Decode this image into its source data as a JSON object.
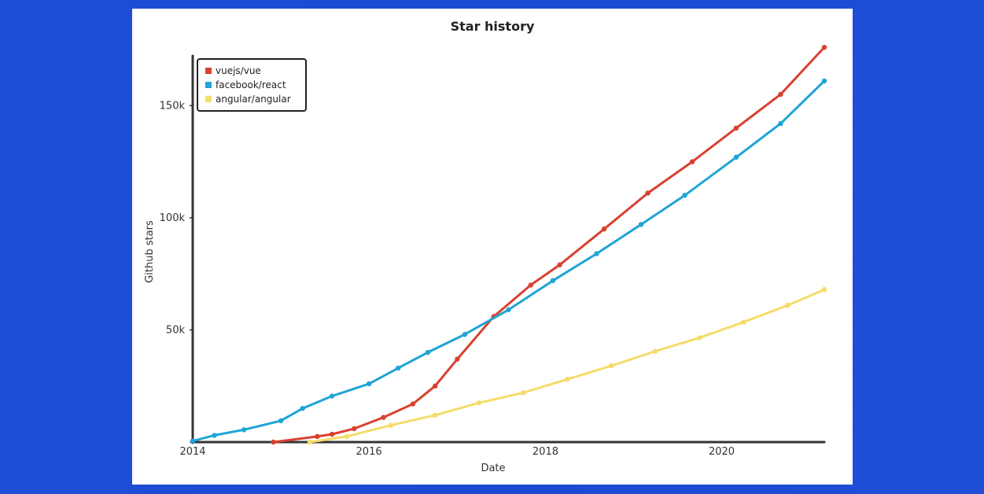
{
  "chart_data": {
    "type": "line",
    "title": "Star history",
    "xlabel": "Date",
    "ylabel": "Github stars",
    "xlim": [
      "2014-01-01",
      "2021-03-01"
    ],
    "ylim": [
      0,
      175000
    ],
    "x_ticks": [
      "2014",
      "2016",
      "2018",
      "2020"
    ],
    "y_ticks": [
      "50k",
      "100k",
      "150k"
    ],
    "legend_position": "top-left",
    "series": [
      {
        "name": "vuejs/vue",
        "color": "#d9412f",
        "points": [
          [
            "2014-12-01",
            0
          ],
          [
            "2015-06-01",
            2500
          ],
          [
            "2015-08-01",
            3500
          ],
          [
            "2015-11-01",
            6000
          ],
          [
            "2016-03-01",
            11000
          ],
          [
            "2016-07-01",
            17000
          ],
          [
            "2016-10-01",
            25000
          ],
          [
            "2017-01-01",
            37000
          ],
          [
            "2017-06-01",
            56000
          ],
          [
            "2017-11-01",
            70000
          ],
          [
            "2018-03-01",
            79000
          ],
          [
            "2018-09-01",
            95000
          ],
          [
            "2019-03-01",
            111000
          ],
          [
            "2019-09-01",
            125000
          ],
          [
            "2020-03-01",
            140000
          ],
          [
            "2020-09-01",
            155000
          ],
          [
            "2021-03-01",
            176000
          ]
        ]
      },
      {
        "name": "facebook/react",
        "color": "#1fa4d6",
        "points": [
          [
            "2014-01-01",
            500
          ],
          [
            "2014-04-01",
            3000
          ],
          [
            "2014-08-01",
            5500
          ],
          [
            "2015-01-01",
            9500
          ],
          [
            "2015-04-01",
            15000
          ],
          [
            "2015-08-01",
            20500
          ],
          [
            "2016-01-01",
            26000
          ],
          [
            "2016-05-01",
            33000
          ],
          [
            "2016-09-01",
            40000
          ],
          [
            "2017-02-01",
            48000
          ],
          [
            "2017-08-01",
            59000
          ],
          [
            "2018-02-01",
            72000
          ],
          [
            "2018-08-01",
            84000
          ],
          [
            "2019-02-01",
            97000
          ],
          [
            "2019-08-01",
            110000
          ],
          [
            "2020-03-01",
            127000
          ],
          [
            "2020-09-01",
            142000
          ],
          [
            "2021-03-01",
            161000
          ]
        ]
      },
      {
        "name": "angular/angular",
        "color": "#f5dc6a",
        "points": [
          [
            "2015-05-01",
            0
          ],
          [
            "2015-10-01",
            2500
          ],
          [
            "2016-04-01",
            7500
          ],
          [
            "2016-10-01",
            12000
          ],
          [
            "2017-04-01",
            17500
          ],
          [
            "2017-10-01",
            22000
          ],
          [
            "2018-04-01",
            28000
          ],
          [
            "2018-10-01",
            34000
          ],
          [
            "2019-04-01",
            40500
          ],
          [
            "2019-10-01",
            46500
          ],
          [
            "2020-04-01",
            53500
          ],
          [
            "2020-10-01",
            61000
          ],
          [
            "2021-03-01",
            68000
          ]
        ]
      }
    ]
  }
}
